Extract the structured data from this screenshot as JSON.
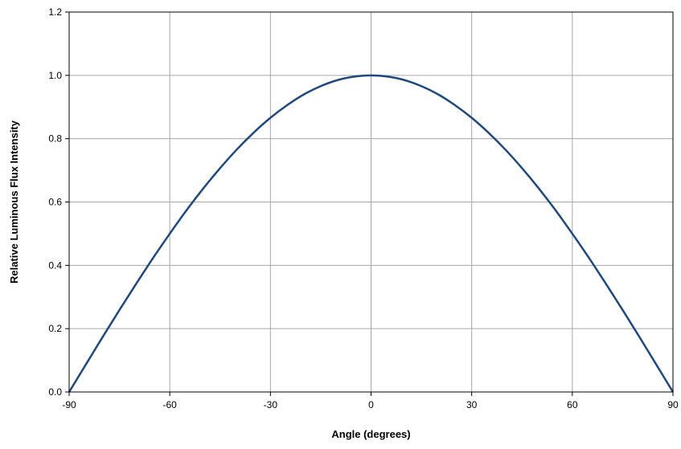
{
  "chart_data": {
    "type": "line",
    "title": "",
    "xlabel": "Angle (degrees)",
    "ylabel": "Relative Luminous Flux Intensity",
    "xlim": [
      -90,
      90
    ],
    "ylim": [
      0,
      1.2
    ],
    "x_ticks": [
      -90,
      -60,
      -30,
      0,
      30,
      60,
      90
    ],
    "y_ticks": [
      0.0,
      0.2,
      0.4,
      0.6,
      0.8,
      1.0,
      1.2
    ],
    "x_tick_labels": [
      "-90",
      "-60",
      "-30",
      "0",
      "30",
      "60",
      "90"
    ],
    "y_tick_labels": [
      "0.0",
      "0.2",
      "0.4",
      "0.6",
      "0.8",
      "1.0",
      "1.2"
    ],
    "grid": true,
    "legend": "none",
    "series": [
      {
        "color": "#1f497d",
        "x": [
          -90,
          -85,
          -80,
          -75,
          -70,
          -65,
          -60,
          -55,
          -50,
          -45,
          -40,
          -35,
          -30,
          -25,
          -20,
          -15,
          -10,
          -5,
          0,
          5,
          10,
          15,
          20,
          25,
          30,
          35,
          40,
          45,
          50,
          55,
          60,
          65,
          70,
          75,
          80,
          85,
          90
        ],
        "y": [
          0.0,
          0.087,
          0.174,
          0.259,
          0.342,
          0.423,
          0.5,
          0.574,
          0.643,
          0.707,
          0.766,
          0.819,
          0.866,
          0.906,
          0.94,
          0.966,
          0.985,
          0.996,
          1.0,
          0.996,
          0.985,
          0.966,
          0.94,
          0.906,
          0.866,
          0.819,
          0.766,
          0.707,
          0.643,
          0.574,
          0.5,
          0.423,
          0.342,
          0.259,
          0.174,
          0.087,
          0.0
        ]
      }
    ]
  }
}
